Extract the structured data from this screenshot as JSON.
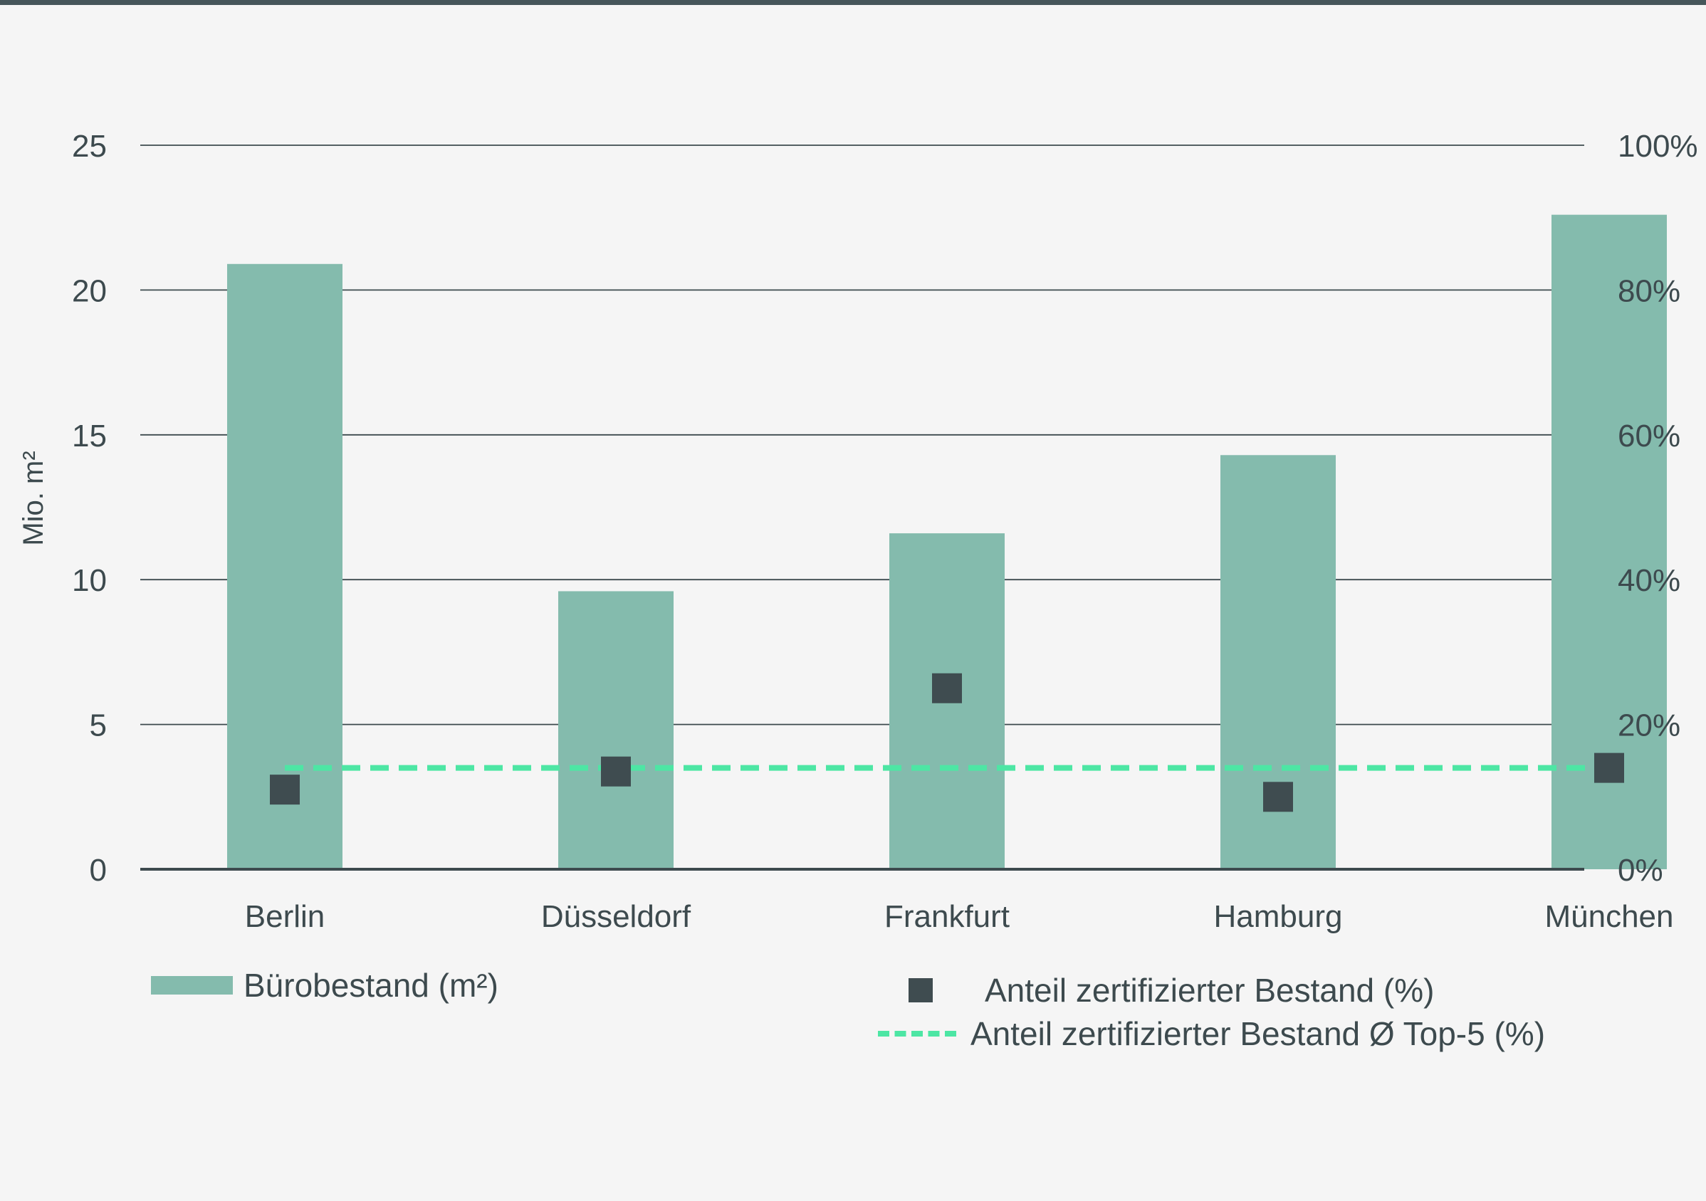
{
  "colors": {
    "bar": "#84bbad",
    "marker": "#3f4c50",
    "average_line": "#4de6a4",
    "gridline": "#3d4a4e",
    "text": "#3d4a4e"
  },
  "chart_data": {
    "type": "bar",
    "categories": [
      "Berlin",
      "Düsseldorf",
      "Frankfurt",
      "Hamburg",
      "München"
    ],
    "series": [
      {
        "name": "Bürobestand (m²)",
        "type": "bar",
        "axis": "left",
        "values": [
          20.9,
          9.6,
          11.6,
          14.3,
          22.6
        ]
      },
      {
        "name": "Anteil zertifizierter Bestand (%)",
        "type": "marker",
        "axis": "right",
        "values": [
          11,
          13.5,
          25,
          10,
          14
        ]
      },
      {
        "name": "Anteil zertifizierter Bestand Ø Top-5 (%)",
        "type": "dashed-line",
        "axis": "right",
        "values": [
          14,
          14,
          14,
          14,
          14
        ]
      }
    ],
    "ylabel": "Mio. m²",
    "ylim": [
      0,
      25
    ],
    "yticks": [
      "0",
      "5",
      "10",
      "15",
      "20",
      "25"
    ],
    "y2lim": [
      0,
      100
    ],
    "y2ticks": [
      "0%",
      "20%",
      "40%",
      "60%",
      "80%",
      "100%"
    ],
    "grid": true,
    "legend_position": "bottom"
  }
}
